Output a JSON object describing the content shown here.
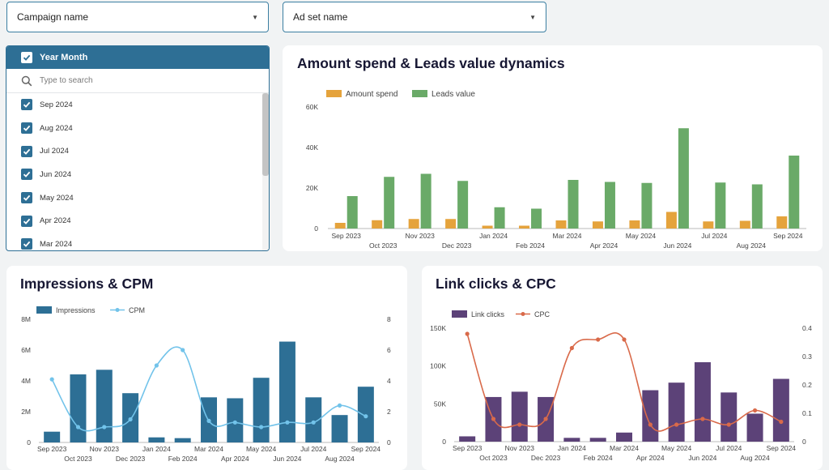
{
  "filters": {
    "campaign": {
      "label": "Campaign name"
    },
    "adset": {
      "label": "Ad set name"
    },
    "year_month": {
      "header": "Year Month",
      "search_placeholder": "Type to search",
      "options": [
        "Sep 2024",
        "Aug 2024",
        "Jul 2024",
        "Jun 2024",
        "May 2024",
        "Apr 2024",
        "Mar 2024"
      ]
    }
  },
  "charts": {
    "spend_leads": {
      "title": "Amount spend & Leads value dynamics"
    },
    "impressions_cpm": {
      "title": "Impressions & CPM"
    },
    "clicks_cpc": {
      "title": "Link clicks & CPC"
    }
  },
  "colors": {
    "accent": "#2e6f95",
    "spend": "#e5a33c",
    "leads": "#6aaa68",
    "impressions": "#2d6f95",
    "cpm": "#72c3ea",
    "link_clicks": "#5c4278",
    "cpc": "#d96a4a"
  },
  "chart_data": [
    {
      "type": "bar",
      "title": "Amount spend & Leads value dynamics",
      "categories": [
        "Sep 2023",
        "Oct 2023",
        "Nov 2023",
        "Dec 2023",
        "Jan 2024",
        "Feb 2024",
        "Mar 2024",
        "Apr 2024",
        "May 2024",
        "Jun 2024",
        "Jul 2024",
        "Aug 2024",
        "Sep 2024"
      ],
      "series": [
        {
          "name": "Amount spend",
          "values": [
            2800,
            4100,
            4700,
            4700,
            1400,
            1400,
            4000,
            3500,
            4000,
            8200,
            3500,
            3800,
            6000
          ]
        },
        {
          "name": "Leads value",
          "values": [
            16000,
            25500,
            27000,
            23500,
            10500,
            9800,
            24000,
            23000,
            22500,
            49500,
            22700,
            21800,
            36000
          ]
        }
      ],
      "ylim": [
        0,
        60000
      ],
      "yticks": [
        "0",
        "20K",
        "40K",
        "60K"
      ],
      "legend": "top-left"
    },
    {
      "type": "bar",
      "title": "Impressions & CPM",
      "categories": [
        "Sep 2023",
        "Oct 2023",
        "Nov 2023",
        "Dec 2023",
        "Jan 2024",
        "Feb 2024",
        "Mar 2024",
        "Apr 2024",
        "May 2024",
        "Jun 2024",
        "Jul 2024",
        "Aug 2024",
        "Sep 2024"
      ],
      "series": [
        {
          "name": "Impressions",
          "type": "bar",
          "axis": "left",
          "values": [
            700000,
            4420000,
            4720000,
            3200000,
            330000,
            280000,
            2930000,
            2870000,
            4200000,
            6550000,
            2930000,
            1780000,
            3620000
          ]
        },
        {
          "name": "CPM",
          "type": "line",
          "axis": "right",
          "values": [
            4.1,
            1.0,
            1.0,
            1.5,
            5.0,
            6.0,
            1.4,
            1.3,
            1.0,
            1.3,
            1.3,
            2.4,
            1.7
          ]
        }
      ],
      "ylim": [
        0,
        8000000
      ],
      "yticks": [
        "0",
        "2M",
        "4M",
        "6M",
        "8M"
      ],
      "y2lim": [
        0,
        8
      ],
      "y2ticks": [
        "0",
        "2",
        "4",
        "6",
        "8"
      ],
      "legend": "top-left"
    },
    {
      "type": "bar",
      "title": "Link clicks & CPC",
      "categories": [
        "Sep 2023",
        "Oct 2023",
        "Nov 2023",
        "Dec 2023",
        "Jan 2024",
        "Feb 2024",
        "Mar 2024",
        "Apr 2024",
        "May 2024",
        "Jun 2024",
        "Jul 2024",
        "Aug 2024",
        "Sep 2024"
      ],
      "series": [
        {
          "name": "Link clicks",
          "type": "bar",
          "axis": "left",
          "values": [
            7000,
            59000,
            66000,
            59000,
            5000,
            5000,
            12000,
            68000,
            78000,
            105000,
            65000,
            37000,
            83000
          ]
        },
        {
          "name": "CPC",
          "type": "line",
          "axis": "right",
          "values": [
            0.38,
            0.08,
            0.06,
            0.08,
            0.33,
            0.36,
            0.36,
            0.06,
            0.06,
            0.08,
            0.06,
            0.11,
            0.07
          ]
        }
      ],
      "ylim": [
        0,
        150000
      ],
      "yticks": [
        "0",
        "50K",
        "100K",
        "150K"
      ],
      "y2lim": [
        0,
        0.4
      ],
      "y2ticks": [
        "0",
        "0.1",
        "0.2",
        "0.3",
        "0.4"
      ],
      "legend": "top-left"
    }
  ]
}
